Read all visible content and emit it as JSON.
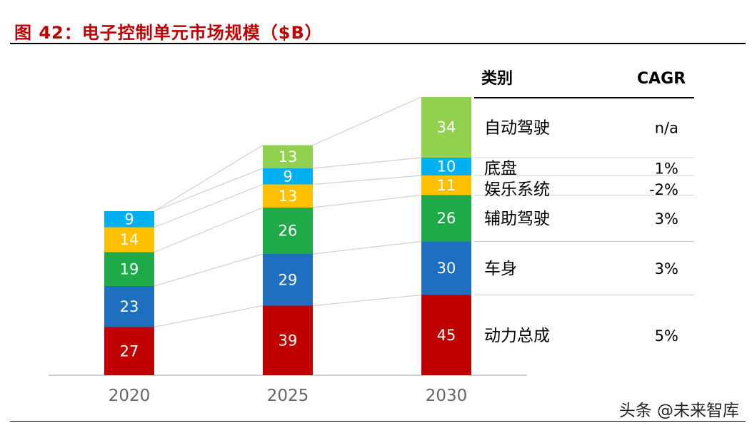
{
  "header": {
    "title": "图 42：电子控制单元市场规模（$B）"
  },
  "watermark": "头条 @未来智库",
  "table_headers": {
    "category": "类别",
    "cagr": "CAGR"
  },
  "colors": {
    "powertrain": "#c00000",
    "body": "#1f6fc0",
    "adas": "#1faa4a",
    "infotainment": "#ffc000",
    "chassis": "#00b0f0",
    "autonomous": "#92d050"
  },
  "chart_data": {
    "type": "bar",
    "stacked": true,
    "title": "图 42：电子控制单元市场规模（$B）",
    "categories": [
      "2020",
      "2025",
      "2030"
    ],
    "series": [
      {
        "name": "动力总成",
        "key": "powertrain",
        "cagr": "5%",
        "values": [
          27,
          39,
          45
        ]
      },
      {
        "name": "车身",
        "key": "body",
        "cagr": "3%",
        "values": [
          23,
          29,
          30
        ]
      },
      {
        "name": "辅助驾驶",
        "key": "adas",
        "cagr": "3%",
        "values": [
          19,
          26,
          26
        ]
      },
      {
        "name": "娱乐系统",
        "key": "infotainment",
        "cagr": "-2%",
        "values": [
          14,
          13,
          11
        ]
      },
      {
        "name": "底盘",
        "key": "chassis",
        "cagr": "1%",
        "values": [
          9,
          9,
          10
        ]
      },
      {
        "name": "自动驾驶",
        "key": "autonomous",
        "cagr": "n/a",
        "values": [
          null,
          13,
          34
        ]
      }
    ],
    "legend": "right",
    "grid": false
  }
}
